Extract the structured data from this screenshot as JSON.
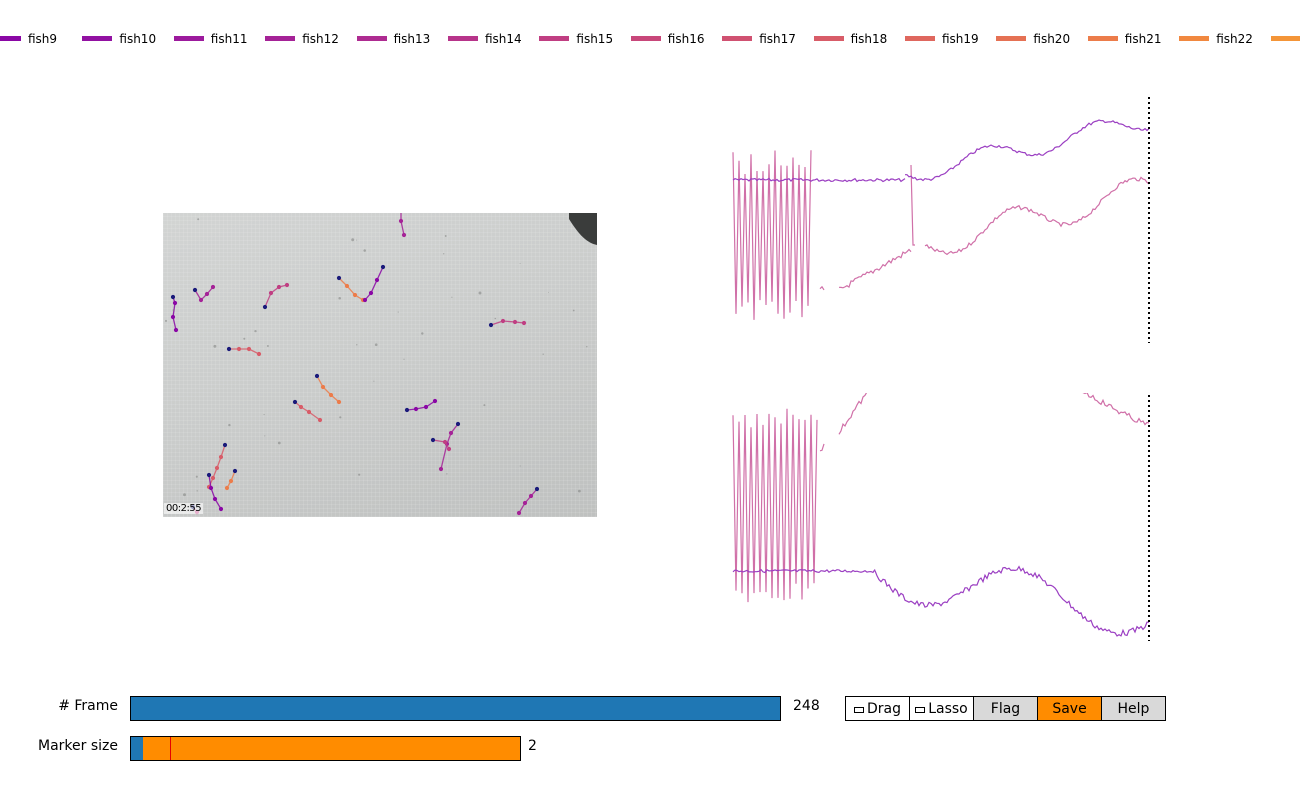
{
  "legend": [
    {
      "label": "fish9",
      "color": "#8a07a5"
    },
    {
      "label": "fish10",
      "color": "#9211a2"
    },
    {
      "label": "fish11",
      "color": "#9c1a9d"
    },
    {
      "label": "fish12",
      "color": "#a52297"
    },
    {
      "label": "fish13",
      "color": "#ae2b91"
    },
    {
      "label": "fish14",
      "color": "#b7348a"
    },
    {
      "label": "fish15",
      "color": "#c03e82"
    },
    {
      "label": "fish16",
      "color": "#c8477a"
    },
    {
      "label": "fish17",
      "color": "#d05171"
    },
    {
      "label": "fish18",
      "color": "#d85c68"
    },
    {
      "label": "fish19",
      "color": "#df675e"
    },
    {
      "label": "fish20",
      "color": "#e57154"
    },
    {
      "label": "fish21",
      "color": "#ec7c4a"
    },
    {
      "label": "fish22",
      "color": "#f1883f"
    },
    {
      "label": "",
      "color": "#f49538"
    }
  ],
  "frame_stamp": "00:2:55",
  "controls": {
    "frame": {
      "label": "# Frame",
      "value": "248",
      "fraction": 1.0
    },
    "marker_size": {
      "label": "Marker size",
      "value": "2",
      "fraction": 0.03,
      "initial_fraction": 0.1
    }
  },
  "toolbar": {
    "drag": "Drag",
    "lasso": "Lasso",
    "flag": "Flag",
    "save": "Save",
    "help": "Help"
  },
  "colors": {
    "series_a": "#9b3fc2",
    "series_b": "#d070a8",
    "frame_slider": "#1f77b4",
    "marker_slider": "#ff8c00",
    "save_button": "#ff8c00",
    "button_gray": "#d9d9d9"
  }
}
